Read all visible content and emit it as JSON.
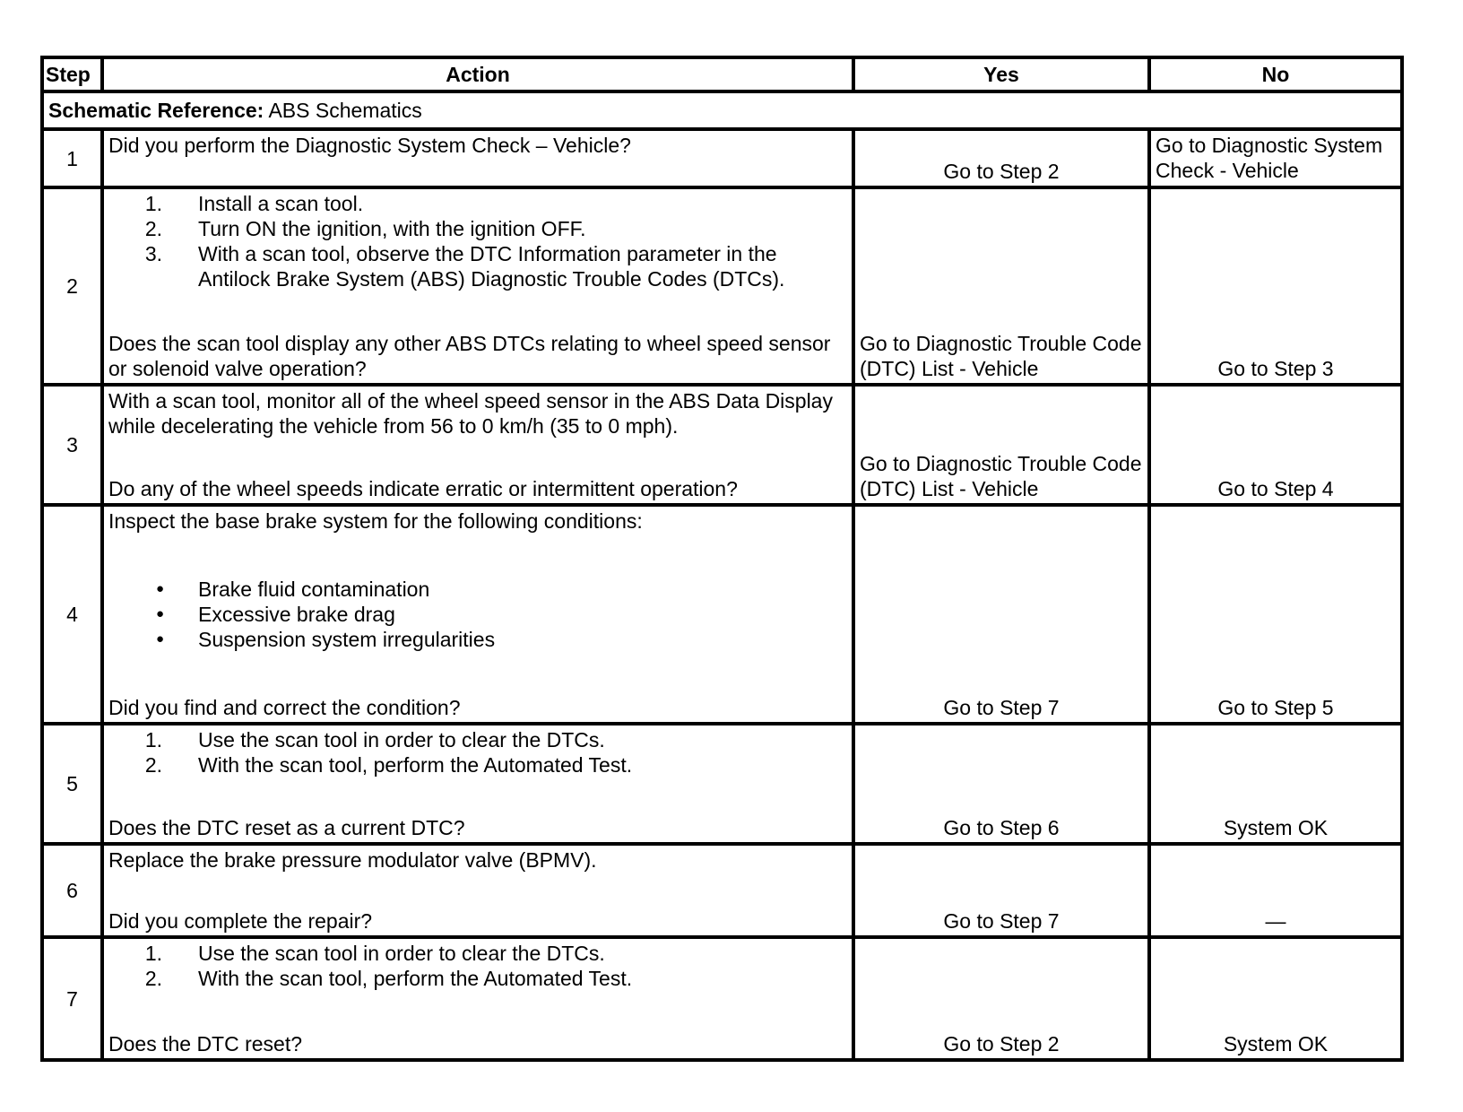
{
  "headers": {
    "step": "Step",
    "action": "Action",
    "yes": "Yes",
    "no": "No"
  },
  "schematic": {
    "label": "Schematic Reference:",
    "value": "ABS Schematics"
  },
  "rows": [
    {
      "step": "1",
      "blocks": [
        {
          "type": "p",
          "text": "Did you perform the Diagnostic System Check – Vehicle?"
        }
      ],
      "yes": "Go to Step 2",
      "no": "Go to Diagnostic System Check - Vehicle"
    },
    {
      "step": "2",
      "blocks": [
        {
          "type": "ol",
          "items": [
            "Install a scan tool.",
            "Turn ON the ignition, with the ignition OFF.",
            "With a scan tool, observe the DTC Information parameter in the Antilock Brake System (ABS) Diagnostic Trouble Codes (DTCs)."
          ]
        },
        {
          "type": "p",
          "text": "Does the scan tool display any other ABS DTCs relating to wheel speed sensor or solenoid valve operation?"
        }
      ],
      "yes": "Go to Diagnostic Trouble Code (DTC) List - Vehicle",
      "no": "Go to Step 3"
    },
    {
      "step": "3",
      "blocks": [
        {
          "type": "p",
          "text": "With a scan tool, monitor all of the wheel speed sensor in the ABS Data Display while decelerating the vehicle from 56 to 0 km/h (35 to 0 mph)."
        },
        {
          "type": "p",
          "text": "Do any of the wheel speeds indicate erratic or intermittent operation?"
        }
      ],
      "yes": "Go to Diagnostic Trouble Code (DTC) List - Vehicle",
      "no": "Go to Step 4"
    },
    {
      "step": "4",
      "blocks": [
        {
          "type": "p",
          "text": "Inspect the base brake system for the following conditions:"
        },
        {
          "type": "ul",
          "items": [
            "Brake fluid contamination",
            "Excessive brake drag",
            "Suspension system irregularities"
          ]
        },
        {
          "type": "p",
          "text": "Did you find and correct the condition?"
        }
      ],
      "yes": "Go to Step 7",
      "no": "Go to Step 5"
    },
    {
      "step": "5",
      "blocks": [
        {
          "type": "ol",
          "items": [
            "Use the scan tool in order to clear the DTCs.",
            "With the scan tool, perform the Automated Test."
          ]
        },
        {
          "type": "p",
          "text": "Does the DTC reset as a current DTC?"
        }
      ],
      "yes": "Go to Step 6",
      "no": "System OK"
    },
    {
      "step": "6",
      "blocks": [
        {
          "type": "p",
          "text": "Replace the brake pressure modulator valve (BPMV)."
        },
        {
          "type": "p",
          "text": "Did you complete the repair?"
        }
      ],
      "yes": "Go to Step 7",
      "no": "—"
    },
    {
      "step": "7",
      "blocks": [
        {
          "type": "ol",
          "items": [
            "Use the scan tool in order to clear the DTCs.",
            "With the scan tool, perform the Automated Test."
          ]
        },
        {
          "type": "p",
          "text": "Does the DTC reset?"
        }
      ],
      "yes": "Go to Step 2",
      "no": "System OK"
    }
  ]
}
